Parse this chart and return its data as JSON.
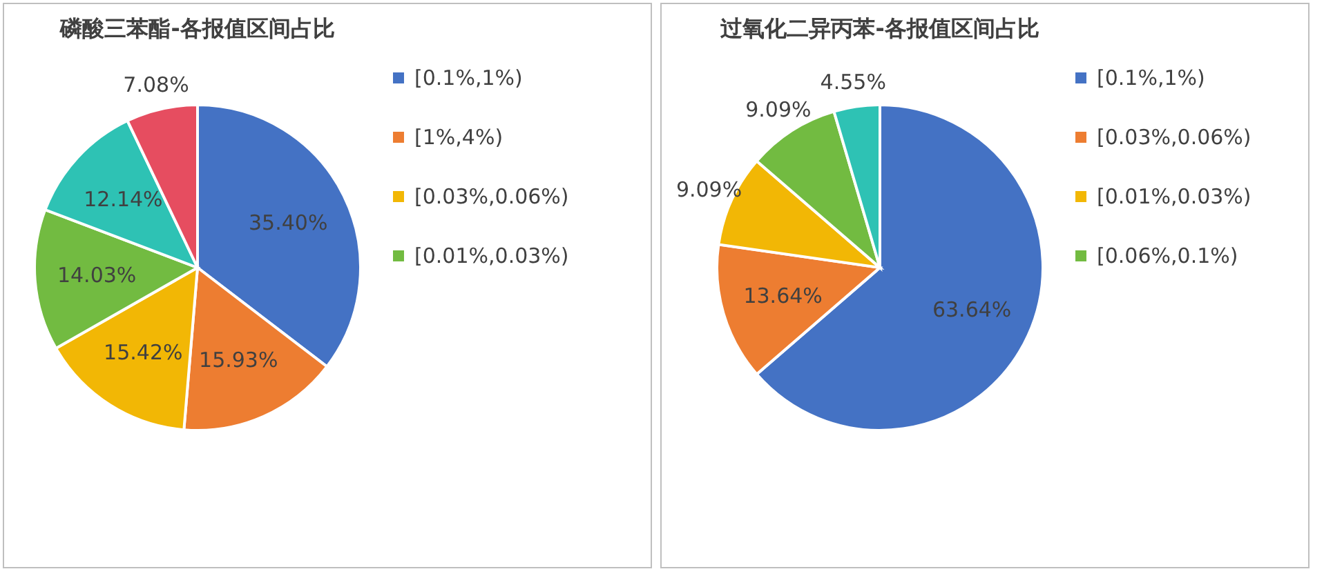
{
  "chart_data": [
    {
      "type": "pie",
      "title": "磷酸三苯酯-各报值区间占比",
      "categories": [
        "[0.1%,1%)",
        "[1%,4%)",
        "[0.03%,0.06%)",
        "[0.01%,0.03%)",
        null,
        null
      ],
      "values": [
        35.4,
        15.93,
        15.42,
        14.03,
        12.14,
        7.08
      ],
      "value_labels": [
        "35.40%",
        "15.93%",
        "15.42%",
        "14.03%",
        "12.14%",
        "7.08%"
      ],
      "colors": [
        "#4472c4",
        "#ed7d31",
        "#f2b705",
        "#72bb41",
        "#2ec2b4",
        "#e64d60"
      ],
      "legend": "right"
    },
    {
      "type": "pie",
      "title": "过氧化二异丙苯-各报值区间占比",
      "categories": [
        "[0.1%,1%)",
        "[0.03%,0.06%)",
        "[0.01%,0.03%)",
        "[0.06%,0.1%)",
        null
      ],
      "values": [
        63.64,
        13.64,
        9.09,
        9.09,
        4.55
      ],
      "value_labels": [
        "63.64%",
        "13.64%",
        "9.09%",
        "9.09%",
        "4.55%"
      ],
      "colors": [
        "#4472c4",
        "#ed7d31",
        "#f2b705",
        "#72bb41",
        "#2ec2b4"
      ],
      "legend": "right"
    }
  ]
}
